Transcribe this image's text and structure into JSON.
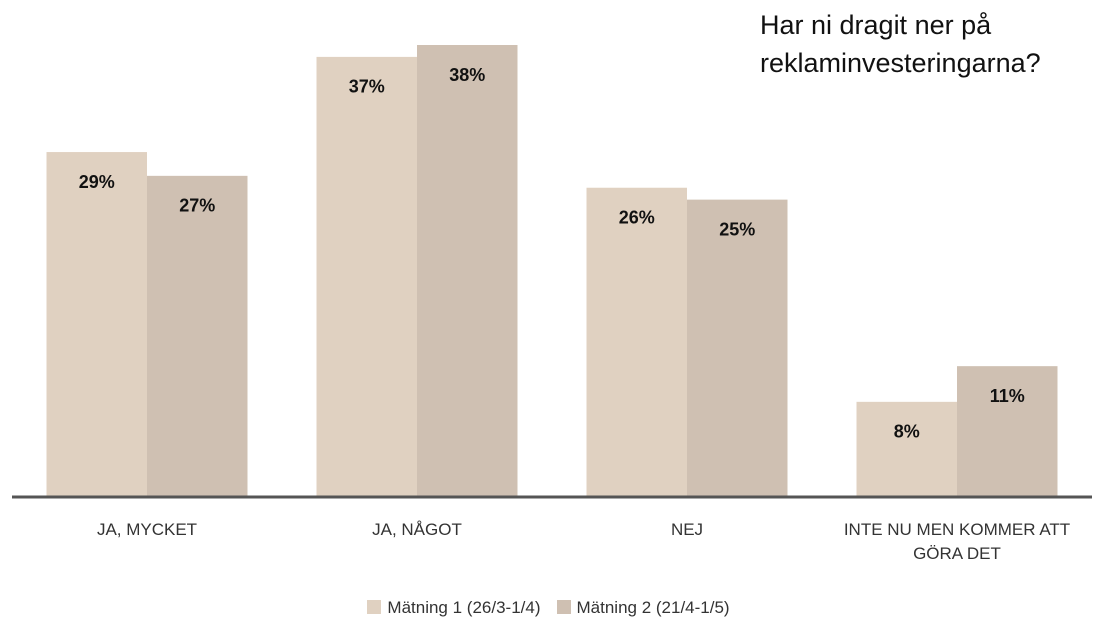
{
  "chart_data": {
    "type": "bar",
    "title": "Har ni dragit ner på reklaminvesteringarna?",
    "categories": [
      "JA, MYCKET",
      "JA, NÅGOT",
      "NEJ",
      "INTE NU MEN KOMMER ATT GÖRA DET"
    ],
    "series": [
      {
        "name": "Mätning 1 (26/3-1/4)",
        "color": "#e0d1c1",
        "values": [
          29,
          37,
          26,
          8
        ],
        "value_labels": [
          "29%",
          "37%",
          "26%",
          "8%"
        ]
      },
      {
        "name": "Mätning 2 (21/4-1/5)",
        "color": "#cfc0b2",
        "values": [
          27,
          38,
          25,
          11
        ],
        "value_labels": [
          "27%",
          "38%",
          "25%",
          "11%"
        ]
      }
    ],
    "legend": "bottom"
  }
}
